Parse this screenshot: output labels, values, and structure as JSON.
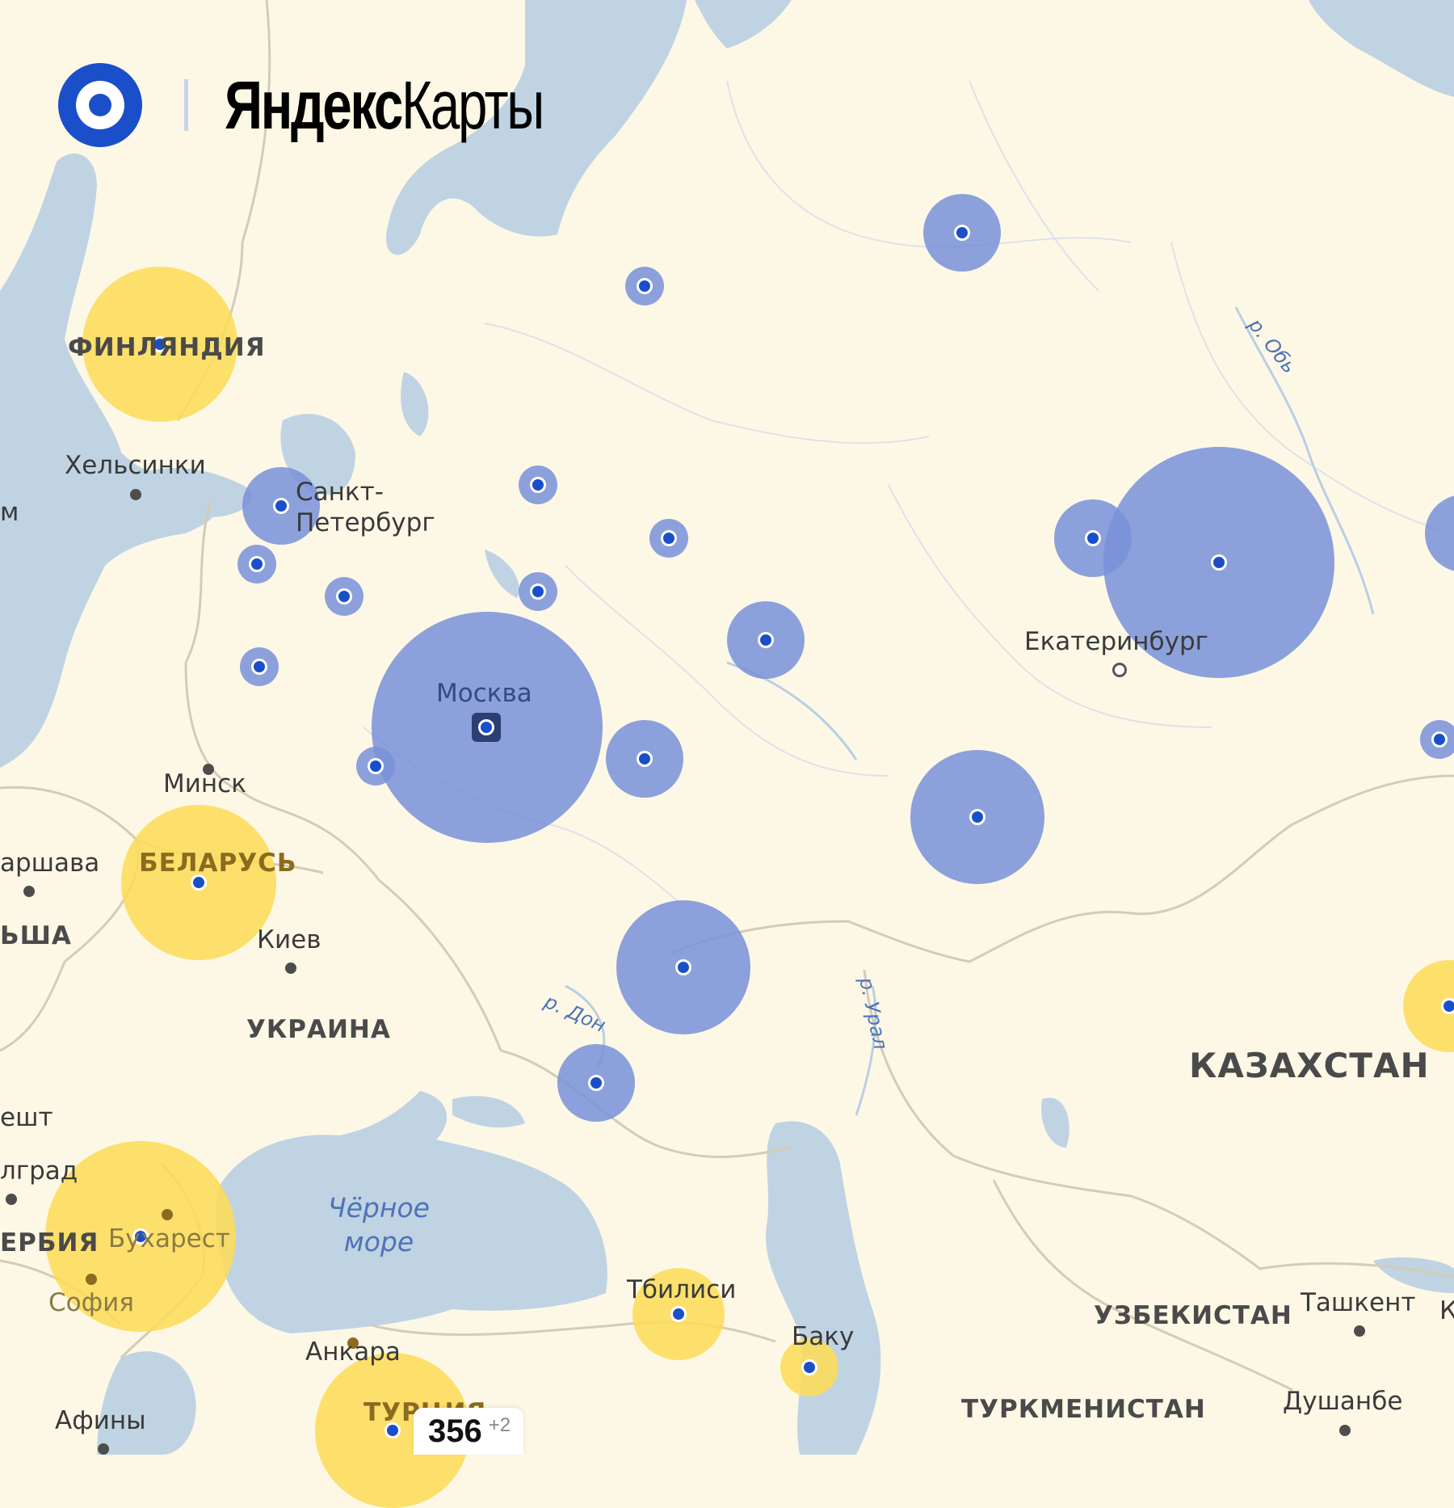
{
  "brand": {
    "name_bold": "Яндекс",
    "name_regular": "Карты"
  },
  "colors": {
    "water": "#bfd3e3",
    "land": "#fdf8e6",
    "border": "#d0cbb8",
    "blue_marker": "#7891d8",
    "yellow_marker": "#fddc55",
    "pin": "#1a4fc9"
  },
  "labels": {
    "helsinki": "Хельсинки",
    "spb": "Санкт-\nПетербург",
    "moscow": "Москва",
    "minsk": "Минск",
    "warsaw": "аршава",
    "kiev": "Киев",
    "bucharest": "Бухарест",
    "sofia": "София",
    "athens": "Афины",
    "ankara": "Анкара",
    "tbilisi": "Тбилиси",
    "baku": "Баку",
    "ekb": "Екатеринбург",
    "tashkent": "Ташкент",
    "dushanbe": "Душанбе",
    "stockholm_cut": "м",
    "budapest_cut": "ешт",
    "belgrade_cut": "лград",
    "k_cut": "К",
    "finland": "ФИНЛЯНДИЯ",
    "belarus": "БЕЛАРУСЬ",
    "poland": "ЬША",
    "ukraine": "УКРАИНА",
    "serbia": "ЕРБИЯ",
    "turkey": "ТУРЦИЯ",
    "kazakhstan": "КАЗАХСТАН",
    "uzbekistan": "УЗБЕКИСТАН",
    "turkmenistan": "ТУРКМЕНИСТАН",
    "river_ob": "р. Обь",
    "river_don": "р. Дон",
    "river_ural": "р. Урал",
    "black_sea": "Чёрное\nморе"
  },
  "markers": {
    "blue_size_levels": [
      "xs",
      "s",
      "m",
      "l",
      "xl"
    ],
    "yellow_size_levels": [
      "s",
      "m",
      "l",
      "xl"
    ]
  },
  "counter": {
    "total": "356",
    "extra": "+2"
  },
  "icons": [
    "yandex-maps-logo-icon",
    "location-pin-icon",
    "capital-marker-icon"
  ]
}
